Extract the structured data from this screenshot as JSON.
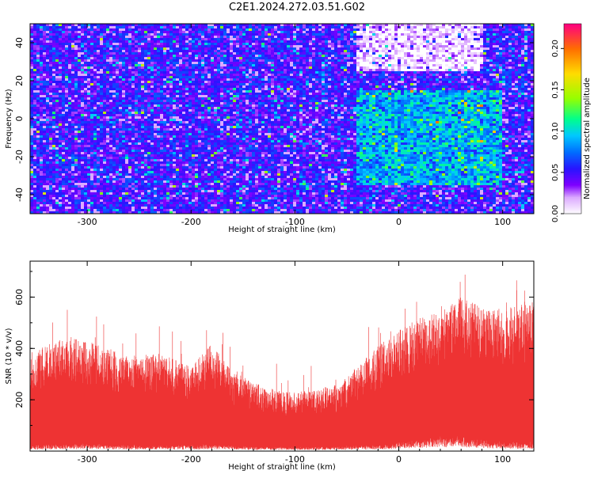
{
  "figure": {
    "title": "C2E1.2024.272.03.51.G02"
  },
  "chart_data": [
    {
      "type": "heatmap",
      "xlabel": "Height of straight line (km)",
      "ylabel": "Frequency (Hz)",
      "xlim": [
        -355,
        130
      ],
      "ylim": [
        -50,
        50
      ],
      "x_ticks": [
        -300,
        -200,
        -100,
        0,
        100
      ],
      "y_ticks": [
        -40,
        -20,
        0,
        20,
        40
      ],
      "colorbar": {
        "label": "Normalized spectral amplitude",
        "range": [
          0,
          0.23
        ],
        "ticks": [
          0.0,
          0.05,
          0.1,
          0.15,
          0.2
        ],
        "tick_labels": [
          "0.00",
          "0.05",
          "0.10",
          "0.15",
          "0.20"
        ],
        "colormap": [
          "#ffffff",
          "#7f00ff",
          "#0000ff",
          "#00bfff",
          "#00ff80",
          "#ffff00",
          "#ff8000",
          "#ff0080"
        ]
      },
      "description_of_field": {
        "background_level": 0.05,
        "enhanced_region_x": [
          -40,
          100
        ],
        "enhanced_region_y": [
          -35,
          15
        ],
        "enhanced_level": 0.09,
        "depleted_region_x": [
          -40,
          80
        ],
        "depleted_region_y": [
          25,
          50
        ],
        "depleted_level": 0.01
      }
    },
    {
      "type": "area",
      "xlabel": "Height of straight line (km)",
      "ylabel": "SNR (10 * v/v)",
      "xlim": [
        -355,
        130
      ],
      "ylim": [
        0,
        740
      ],
      "x_ticks": [
        -300,
        -200,
        -100,
        0,
        100
      ],
      "y_ticks": [
        200,
        400,
        600
      ],
      "color": "#ee3333",
      "series": [
        {
          "x": -350,
          "min": 20,
          "max": 390
        },
        {
          "x": -320,
          "min": 25,
          "max": 450
        },
        {
          "x": -290,
          "min": 25,
          "max": 420
        },
        {
          "x": -260,
          "min": 20,
          "max": 370
        },
        {
          "x": -230,
          "min": 20,
          "max": 380
        },
        {
          "x": -200,
          "min": 20,
          "max": 330
        },
        {
          "x": -180,
          "min": 25,
          "max": 420
        },
        {
          "x": -160,
          "min": 20,
          "max": 310
        },
        {
          "x": -140,
          "min": 15,
          "max": 270
        },
        {
          "x": -120,
          "min": 15,
          "max": 240
        },
        {
          "x": -100,
          "min": 15,
          "max": 230
        },
        {
          "x": -80,
          "min": 15,
          "max": 240
        },
        {
          "x": -60,
          "min": 15,
          "max": 260
        },
        {
          "x": -40,
          "min": 20,
          "max": 330
        },
        {
          "x": -20,
          "min": 20,
          "max": 410
        },
        {
          "x": 0,
          "min": 30,
          "max": 470
        },
        {
          "x": 20,
          "min": 40,
          "max": 520
        },
        {
          "x": 40,
          "min": 50,
          "max": 540
        },
        {
          "x": 60,
          "min": 50,
          "max": 600
        },
        {
          "x": 80,
          "min": 40,
          "max": 560
        },
        {
          "x": 100,
          "min": 30,
          "max": 560
        },
        {
          "x": 120,
          "min": 30,
          "max": 580
        },
        {
          "x": 130,
          "min": 30,
          "max": 600
        }
      ]
    }
  ]
}
